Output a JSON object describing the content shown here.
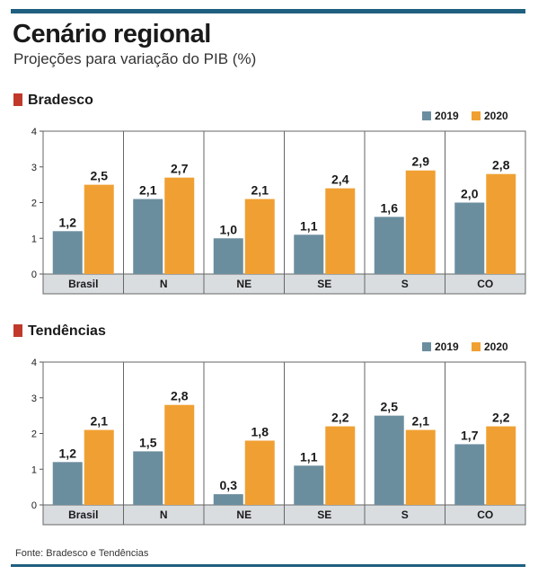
{
  "title": "Cenário regional",
  "subtitle": "Projeções para variação do PIB (%)",
  "source": "Fonte: Bradesco e Tendências",
  "colors": {
    "2019": "#6b8e9f",
    "2020": "#f0a032",
    "accent": "#c0392b",
    "rule": "#1f5f7f",
    "strip": "#d9dde0"
  },
  "chart_data": [
    {
      "type": "bar",
      "title": "Bradesco",
      "categories": [
        "Brasil",
        "N",
        "NE",
        "SE",
        "S",
        "CO"
      ],
      "series": [
        {
          "name": "2019",
          "values": [
            1.2,
            2.1,
            1.0,
            1.1,
            1.6,
            2.0
          ],
          "labels": [
            "1,2",
            "2,1",
            "1,0",
            "1,1",
            "1,6",
            "2,0"
          ]
        },
        {
          "name": "2020",
          "values": [
            2.5,
            2.7,
            2.1,
            2.4,
            2.9,
            2.8
          ],
          "labels": [
            "2,5",
            "2,7",
            "2,1",
            "2,4",
            "2,9",
            "2,8"
          ]
        }
      ],
      "ylim": [
        0,
        4
      ],
      "yticks": [
        0,
        1,
        2,
        3,
        4
      ],
      "legend": "top-right",
      "grid": false
    },
    {
      "type": "bar",
      "title": "Tendências",
      "categories": [
        "Brasil",
        "N",
        "NE",
        "SE",
        "S",
        "CO"
      ],
      "series": [
        {
          "name": "2019",
          "values": [
            1.2,
            1.5,
            0.3,
            1.1,
            2.5,
            1.7
          ],
          "labels": [
            "1,2",
            "1,5",
            "0,3",
            "1,1",
            "2,5",
            "1,7"
          ]
        },
        {
          "name": "2020",
          "values": [
            2.1,
            2.8,
            1.8,
            2.2,
            2.1,
            2.2
          ],
          "labels": [
            "2,1",
            "2,8",
            "1,8",
            "2,2",
            "2,1",
            "2,2"
          ]
        }
      ],
      "ylim": [
        0,
        4
      ],
      "yticks": [
        0,
        1,
        2,
        3,
        4
      ],
      "legend": "top-right",
      "grid": false
    }
  ]
}
